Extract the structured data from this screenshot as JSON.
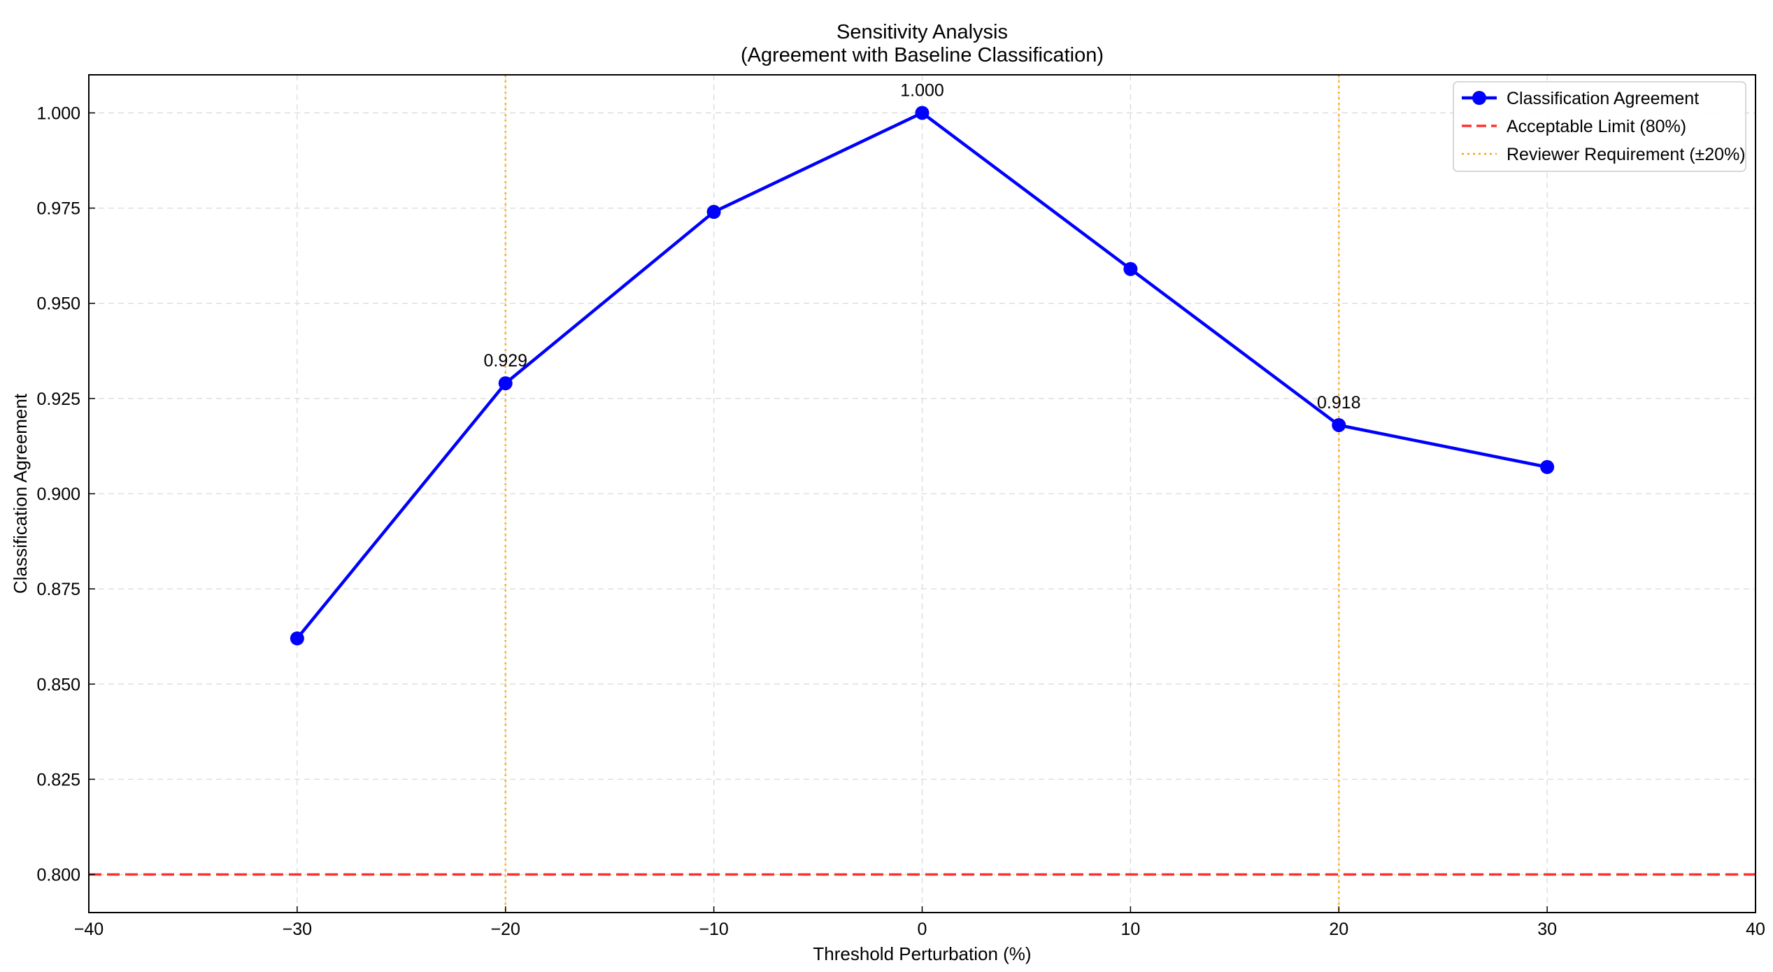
{
  "chart_data": {
    "type": "line",
    "title": [
      "Sensitivity Analysis",
      "(Agreement with Baseline Classification)"
    ],
    "xlabel": "Threshold Perturbation (%)",
    "ylabel": "Classification Agreement",
    "xlim": [
      -40,
      40
    ],
    "ylim": [
      0.79,
      1.01
    ],
    "xticks": [
      -40,
      -30,
      -20,
      -10,
      0,
      10,
      20,
      30,
      40
    ],
    "xtick_labels": [
      "−40",
      "−30",
      "−20",
      "−10",
      "0",
      "10",
      "20",
      "30",
      "40"
    ],
    "yticks": [
      0.8,
      0.825,
      0.85,
      0.875,
      0.9,
      0.925,
      0.95,
      0.975,
      1.0
    ],
    "ytick_labels": [
      "0.800",
      "0.825",
      "0.850",
      "0.875",
      "0.900",
      "0.925",
      "0.950",
      "0.975",
      "1.000"
    ],
    "grid": true,
    "legend_position": "top-right",
    "series": [
      {
        "name": "Classification Agreement",
        "color": "#0000ff",
        "x": [
          -30,
          -20,
          -10,
          0,
          10,
          20,
          30
        ],
        "values": [
          0.862,
          0.929,
          0.974,
          1.0,
          0.959,
          0.918,
          0.907
        ]
      }
    ],
    "reference_lines": [
      {
        "name": "Acceptable Limit (80%)",
        "orientation": "horizontal",
        "value": 0.8,
        "color": "#ff0000",
        "style": "dashed"
      },
      {
        "name": "Reviewer Requirement (±20%)",
        "orientation": "vertical",
        "values": [
          -20,
          20
        ],
        "color": "#ffa500",
        "style": "dotted"
      }
    ],
    "annotations": [
      {
        "x": -20,
        "y": 0.929,
        "text": "0.929"
      },
      {
        "x": 0,
        "y": 1.0,
        "text": "1.000"
      },
      {
        "x": 20,
        "y": 0.918,
        "text": "0.918"
      }
    ]
  }
}
